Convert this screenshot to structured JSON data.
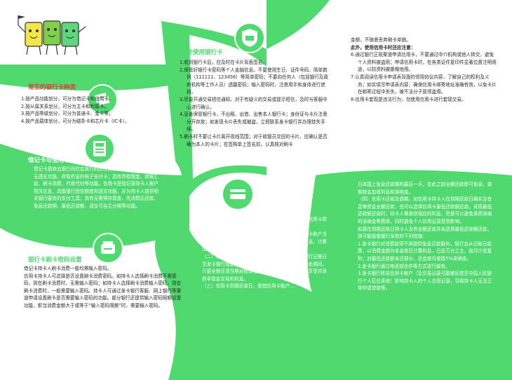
{
  "colors": {
    "green": "#4fd96e",
    "red": "#e53b3b",
    "white": "#ffffff"
  },
  "col1": {
    "sec1_title": "常见的银行卡种类",
    "sec1_lines": [
      "1.按产品功能划分，可分为借记卡和信用卡。",
      "2.按从属关系划分，可分为主卡和附属卡。",
      "3.按产品等级划分，可分为普通卡、金卡等。",
      "4.按产品载体划分，可分为磁条卡和芯片卡（IC卡）。"
    ],
    "sec2_title": "借记卡与信用卡",
    "sec2_text": "借记卡是商业银行向社会发行的具有先存款后消费（或取现）、无透支功能、存取有息的电子支付卡；具有存取现金、转账汇款、刷卡消费、代收代付等功能。信用卡是指记录持卡人账户相关信息，具备银行授信额度和透支功能，并为持卡人提供相关银行服务的支付工具；具有无需预存现金、先消费后还款、免息还款期、最低还款额、透支可自主分期等功能。",
    "sec3_title": "银行卡刷卡密码设置",
    "sec3_lines": [
      "借记卡持卡人刷卡消费一般均需输入密码。",
      "信用卡持卡人可选择是否设置刷卡消费密码。如持卡人选择刷卡消费不需密码，则在刷卡消费时，无需输入密码；如持卡人选择刷卡消费输入密码，则在刷卡消费时，一般需要输入密码。持卡人可通过发卡银行客服、网上银行等渠道申请设置刷卡是否需要输入密码的功能。部分银行还提供输入密码限额设置功能，即当消费金额大于或等于“输入密码限额”时，需要输入密码。"
    ]
  },
  "col2": {
    "sec4_title": "安全使用银行卡",
    "sec4_items": [
      "1.收到银行卡后，应及时在卡片背面签名。",
      "2.保管好银行卡密码等个人金融信息。不要使用生日、证件号码、简单数列（111111、123456）等简单密码；不要向任何人（包括银行及政府机构等工作人员）透露密码；输入密码时，注意用手和身体进行遮挡。",
      "3.尽量开通交易短信通知，对于有疑义的交易或提示短信，及时与客服中心进行确认。",
      "4.妥善保管银行卡，不出租、出借、出售本人银行卡；身份证与卡片注意分开存放；如发现卡片丢失或被盗，立即联系发卡银行并办理挂失手续。",
      "5.刷卡时不要让卡片离开视线范围；对于收银员交回的卡片，应确认是否确为本人的卡片；在签购单上签名前，认真核对刷卡"
    ],
    "sec5_title": "信用卡小贴士",
    "sec5_text": [
      "信用卡持卡人应通过银行网站、客服电话、申请书、信用卡章程等渠道详细了解有关信用卡使用的各项信息。",
      "（一）信用卡账单日，是指发卡银行每月定期对信用卡账户当期发生的各项交易、费用等进行汇总结算，并结计利息，计算出持卡人当期应还款项的日期。",
      "（二）信用卡免息还款期，是指对非现金交易，从银行记账日至发卡银行规定的到期还款日之间为免息还款期。在此期间，只要全额还清当期对账单上的本期应还金额，便不再享受并承担非现金交易的利息。",
      "（三）信用卡到期还款日，是指信用卡账户..."
    ]
  },
  "col3": {
    "top_lines": [
      "金额，不随意丢弃刷卡单据。",
      "此外，使用信用卡时还应注意："
    ],
    "items": [
      "6.通过银行正规渠道申请信用卡，不要通过中介机构或他人转交，避免个人资料被盗用；申请信用卡时，在各类证件复印件显著位置注明用途，以防资料被挪做他用。",
      "7.认真阅读信用卡申请表背面的领用协议内容，了解自己的权利及义务；如实填写申请表内容，确保信用卡邮寄地址准确有效，以免卡片在邮寄过程中丢失，被不法分子冒领盗用。",
      "8.信用卡套现是违法行为，勿使用信用卡进行套现交易。"
    ],
    "lower_text": [
      "日本国上免息还款期的最后一天，在此之前全额还款即可免息，逾期就会加收利息和滞纳金。",
      "（四）信用卡还款及逾期。如信用卡持卡人在到期还款日确实没有足够资金全额还款，也可以选择信用卡最低还款额还款。采用最低还款额还款时，持卡人需承担相应的利息，但是可以避免承担滞纳的滞纳金等费用，同时避免个人信用记录受到影响。",
      "如果在到期还款日持卡人没有全额还款并未选择最低还款额还款，则可能面临银行采取的下列措施：",
      "1.发卡银行对消费款项不再提供免息还款服务，银行会从记账日起算，以消费金额为本金按日计算利息，日息万分之五，按月计收复利；对最低还款额未还部分，还会按月收取5%滞纳金。",
      "2.发卡银行通过电话或信件等方式进行催收。",
      "3.发卡银行将该信用卡账户（及交易记录可能被反馈至中国人民银行个人征信系统）影响持卡人的个人信用记录，导致持卡人无法正常申请贷款等。"
    ]
  }
}
